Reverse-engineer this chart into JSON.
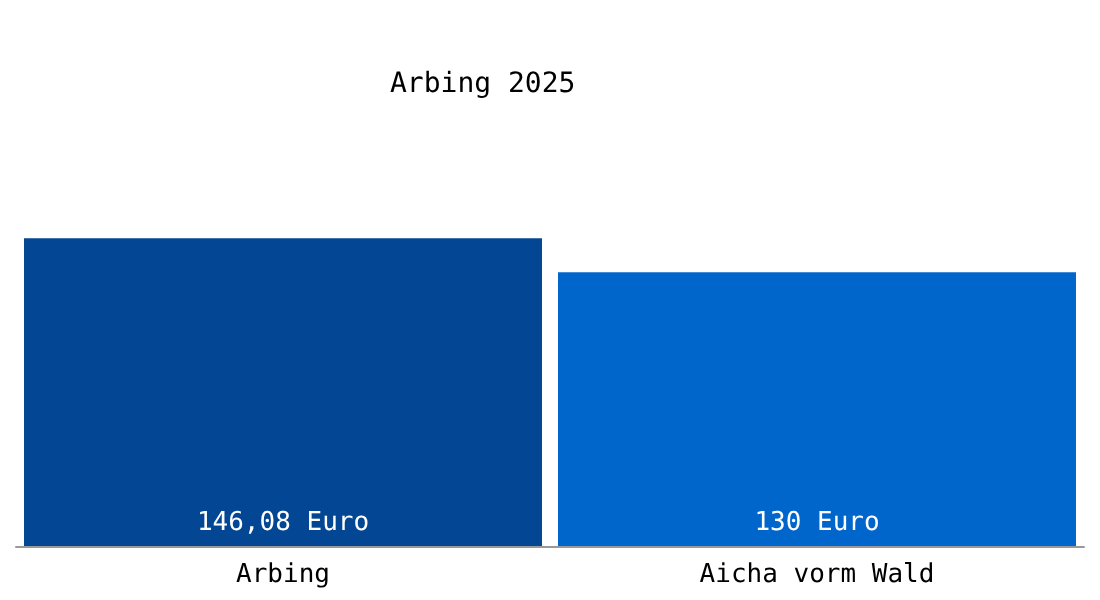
{
  "chart_data": {
    "type": "bar",
    "title": "Arbing 2025",
    "categories": [
      "Arbing",
      "Aicha vorm Wald"
    ],
    "values": [
      146.08,
      130
    ],
    "colors": [
      "#034693",
      "#0066cc"
    ],
    "value_labels": [
      "146,08 Euro",
      "130 Euro"
    ]
  }
}
